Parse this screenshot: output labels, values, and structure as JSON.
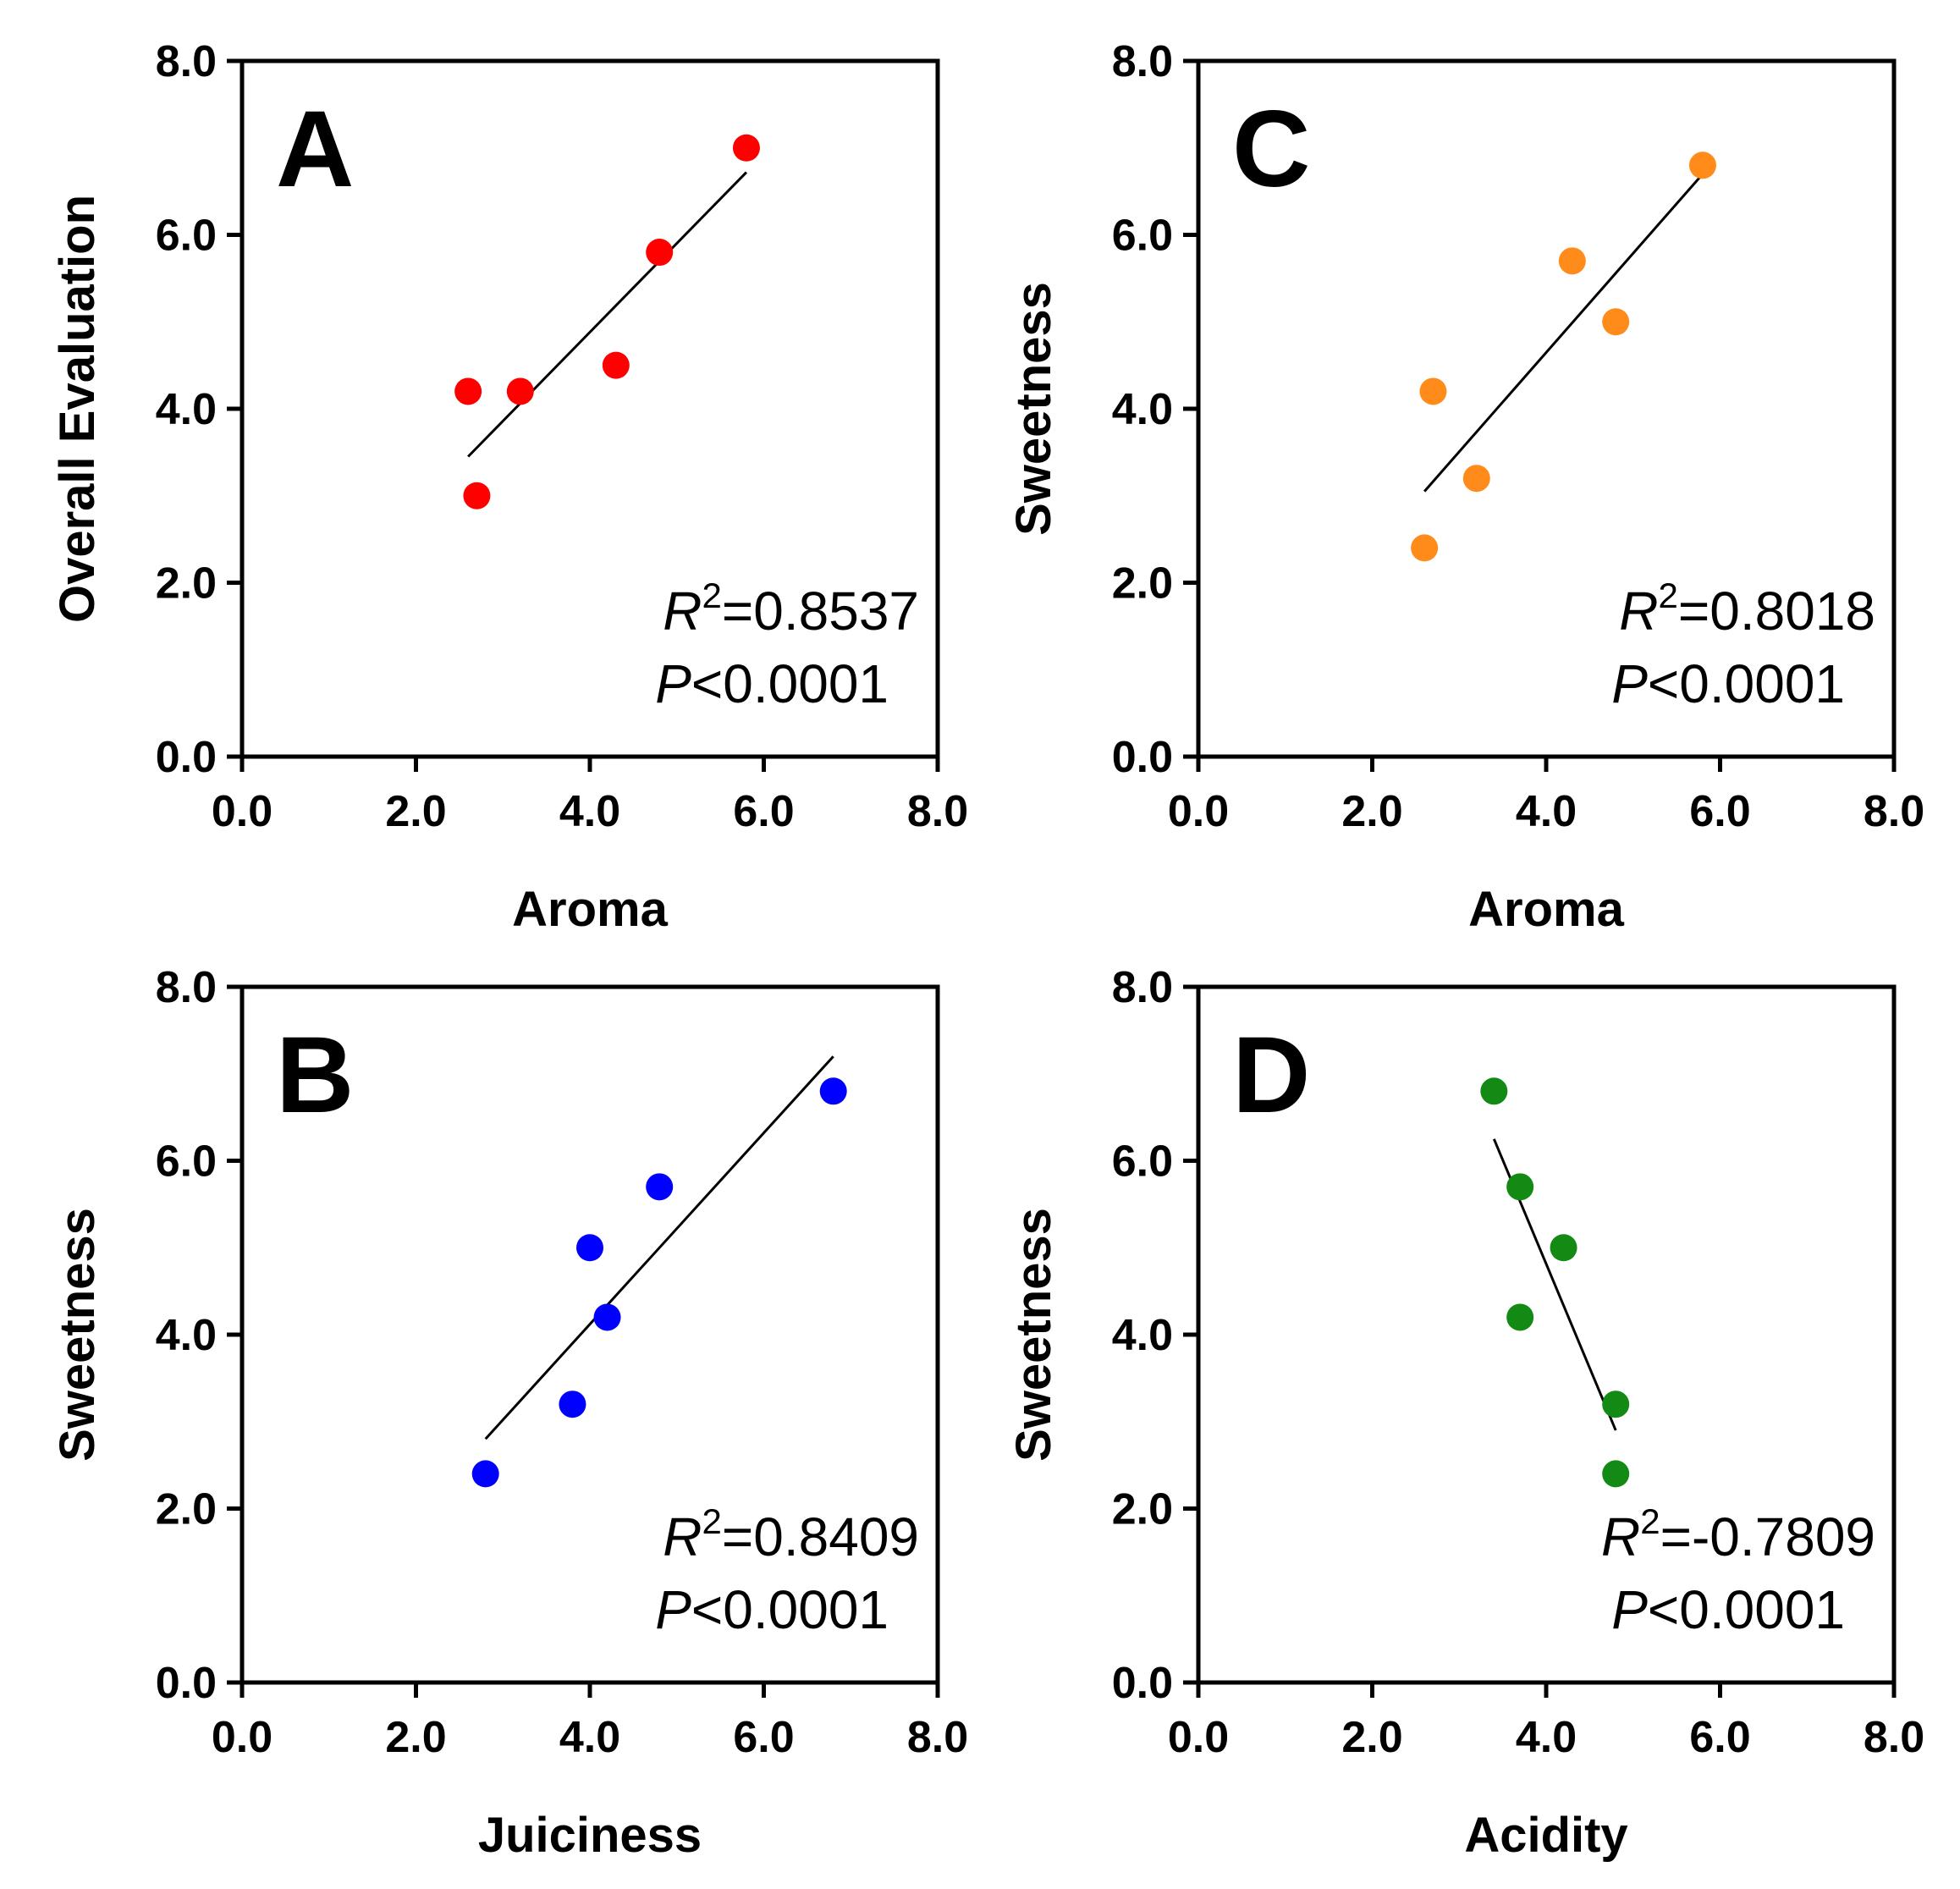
{
  "figure": {
    "layout": "2x2 grid of scatter plots with linear fits"
  },
  "chart_data": [
    {
      "panel": "A",
      "type": "scatter",
      "xlabel": "Aroma",
      "ylabel": "Overall Evaluation",
      "xlim": [
        0,
        8
      ],
      "ylim": [
        0,
        8
      ],
      "xticks": [
        "0.0",
        "2.0",
        "4.0",
        "6.0",
        "8.0"
      ],
      "yticks": [
        "0.0",
        "2.0",
        "4.0",
        "6.0",
        "8.0"
      ],
      "color": "#ff0000",
      "x": [
        2.6,
        2.7,
        3.2,
        4.3,
        4.8,
        5.8
      ],
      "y": [
        4.2,
        3.0,
        4.2,
        4.5,
        5.8,
        7.0
      ],
      "fit": {
        "x": [
          2.6,
          5.8
        ],
        "y": [
          3.45,
          6.72
        ]
      },
      "r2_label": "R",
      "r2_sup": "2",
      "r2_value": "=0.8537",
      "p_label": "P",
      "p_value": "<0.0001",
      "grid": false
    },
    {
      "panel": "B",
      "type": "scatter",
      "xlabel": "Juiciness",
      "ylabel": "Sweetness",
      "xlim": [
        0,
        8
      ],
      "ylim": [
        0,
        8
      ],
      "xticks": [
        "0.0",
        "2.0",
        "4.0",
        "6.0",
        "8.0"
      ],
      "yticks": [
        "0.0",
        "2.0",
        "4.0",
        "6.0",
        "8.0"
      ],
      "color": "#0000ff",
      "x": [
        2.8,
        3.8,
        4.0,
        4.2,
        4.8,
        6.8
      ],
      "y": [
        2.4,
        3.2,
        5.0,
        4.2,
        5.7,
        6.8
      ],
      "fit": {
        "x": [
          2.8,
          6.8
        ],
        "y": [
          2.8,
          7.2
        ]
      },
      "r2_label": "R",
      "r2_sup": "2",
      "r2_value": "=0.8409",
      "p_label": "P",
      "p_value": "<0.0001",
      "grid": false
    },
    {
      "panel": "C",
      "type": "scatter",
      "xlabel": "Aroma",
      "ylabel": "Sweetness",
      "xlim": [
        0,
        8
      ],
      "ylim": [
        0,
        8
      ],
      "xticks": [
        "0.0",
        "2.0",
        "4.0",
        "6.0",
        "8.0"
      ],
      "yticks": [
        "0.0",
        "2.0",
        "4.0",
        "6.0",
        "8.0"
      ],
      "color": "#ff8c1a",
      "x": [
        2.6,
        2.7,
        3.2,
        4.3,
        4.8,
        5.8
      ],
      "y": [
        2.4,
        4.2,
        3.2,
        5.7,
        5.0,
        6.8
      ],
      "fit": {
        "x": [
          2.6,
          5.8
        ],
        "y": [
          3.05,
          6.7
        ]
      },
      "r2_label": "R",
      "r2_sup": "2",
      "r2_value": "=0.8018",
      "p_label": "P",
      "p_value": "<0.0001",
      "grid": false
    },
    {
      "panel": "D",
      "type": "scatter",
      "xlabel": "Acidity",
      "ylabel": "Sweetness",
      "xlim": [
        0,
        8
      ],
      "ylim": [
        0,
        8
      ],
      "xticks": [
        "0.0",
        "2.0",
        "4.0",
        "6.0",
        "8.0"
      ],
      "yticks": [
        "0.0",
        "2.0",
        "4.0",
        "6.0",
        "8.0"
      ],
      "color": "#138a13",
      "x": [
        3.4,
        3.7,
        3.7,
        4.2,
        4.8,
        4.8
      ],
      "y": [
        6.8,
        5.7,
        4.2,
        5.0,
        3.2,
        2.4
      ],
      "fit": {
        "x": [
          3.4,
          4.8
        ],
        "y": [
          6.25,
          2.9
        ]
      },
      "r2_label": "R",
      "r2_sup": "2",
      "r2_value": "=-0.7809",
      "p_label": "P",
      "p_value": "<0.0001",
      "grid": false
    }
  ]
}
